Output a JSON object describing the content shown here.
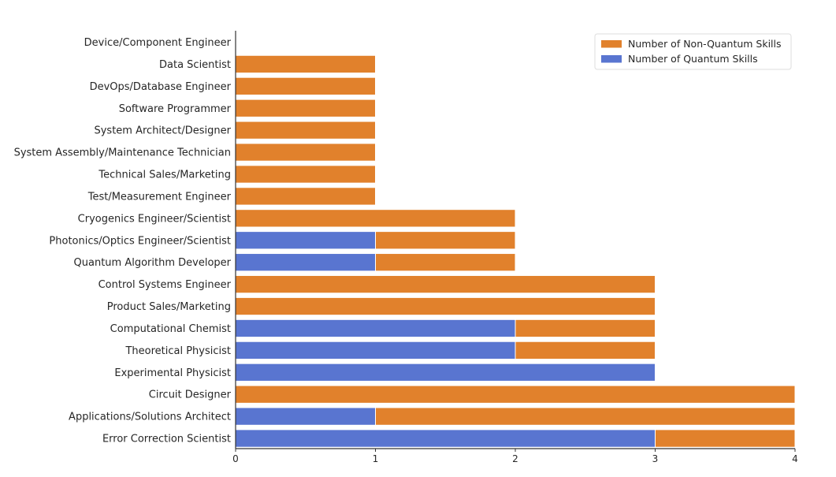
{
  "chart_data": {
    "type": "bar",
    "orientation": "horizontal",
    "stacked": true,
    "categories": [
      "Device/Component Engineer",
      "Data Scientist",
      "DevOps/Database Engineer",
      "Software Programmer",
      "System Architect/Designer",
      "System Assembly/Maintenance Technician",
      "Technical Sales/Marketing",
      "Test/Measurement Engineer",
      "Cryogenics Engineer/Scientist",
      "Photonics/Optics Engineer/Scientist",
      "Quantum Algorithm Developer",
      "Control Systems Engineer",
      "Product Sales/Marketing",
      "Computational Chemist",
      "Theoretical Physicist",
      "Experimental Physicist",
      "Circuit Designer",
      "Applications/Solutions Architect",
      "Error Correction Scientist"
    ],
    "series": [
      {
        "name": "Number of Quantum Skills",
        "color": "#5975d0",
        "values": [
          0,
          0,
          0,
          0,
          0,
          0,
          0,
          0,
          0,
          1,
          1,
          0,
          0,
          2,
          2,
          3,
          0,
          1,
          3
        ]
      },
      {
        "name": "Number of Non-Quantum Skills",
        "color": "#e1812c",
        "values": [
          0,
          1,
          1,
          1,
          1,
          1,
          1,
          1,
          2,
          1,
          1,
          3,
          3,
          1,
          1,
          0,
          4,
          3,
          1
        ]
      }
    ],
    "legend_order": [
      "Number of Non-Quantum Skills",
      "Number of Quantum Skills"
    ],
    "xticks": [
      "0",
      "1",
      "2",
      "3",
      "4"
    ],
    "xlim": [
      0,
      4
    ],
    "title": "",
    "xlabel": "",
    "ylabel": "",
    "legend_position": "top-right",
    "grid": false
  }
}
